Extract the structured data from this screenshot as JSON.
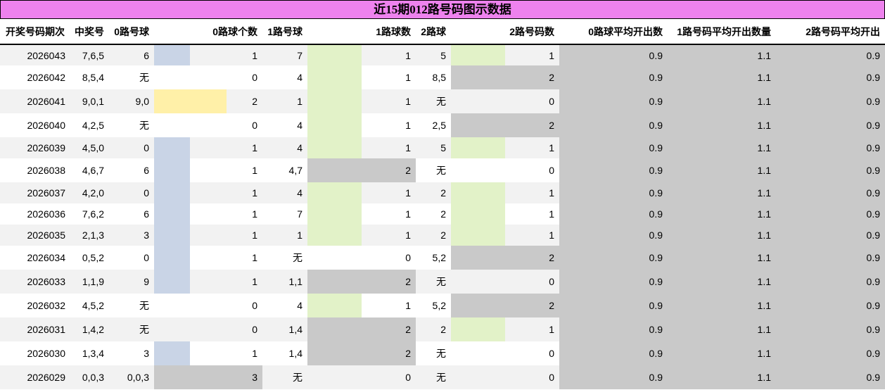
{
  "title": "近15期012路号码图示数据",
  "headers": [
    "开奖号码期次",
    "中奖号",
    "0路号球",
    "0路球个数",
    "1路号球",
    "1路球数",
    "2路球",
    "2路号码数",
    "0路球平均开出数",
    "1路号码平均开出数量",
    "2路号码平均开出"
  ],
  "colors": {
    "title_bg": "#ee82ee",
    "row_alt": "#f2f2f2",
    "avg_bg": "#c9c9c9",
    "road0_bar": {
      "1": "#c9d4e6",
      "2": "#fff0a8",
      "3": "#c9c9c9"
    },
    "road12_bar": {
      "1": "#e2f2c8",
      "2": "#c9c9c9"
    }
  },
  "rows": [
    [
      "2026043",
      "7,6,5",
      "6",
      "1",
      "7",
      "1",
      "5",
      "1",
      "0.9",
      "1.1",
      "0.9"
    ],
    [
      "2026042",
      "8,5,4",
      "无",
      "0",
      "4",
      "1",
      "8,5",
      "2",
      "0.9",
      "1.1",
      "0.9"
    ],
    [
      "2026041",
      "9,0,1",
      "9,0",
      "2",
      "1",
      "1",
      "无",
      "0",
      "0.9",
      "1.1",
      "0.9"
    ],
    [
      "2026040",
      "4,2,5",
      "无",
      "0",
      "4",
      "1",
      "2,5",
      "2",
      "0.9",
      "1.1",
      "0.9"
    ],
    [
      "2026039",
      "4,5,0",
      "0",
      "1",
      "4",
      "1",
      "5",
      "1",
      "0.9",
      "1.1",
      "0.9"
    ],
    [
      "2026038",
      "4,6,7",
      "6",
      "1",
      "4,7",
      "2",
      "无",
      "0",
      "0.9",
      "1.1",
      "0.9"
    ],
    [
      "2026037",
      "4,2,0",
      "0",
      "1",
      "4",
      "1",
      "2",
      "1",
      "0.9",
      "1.1",
      "0.9"
    ],
    [
      "2026036",
      "7,6,2",
      "6",
      "1",
      "7",
      "1",
      "2",
      "1",
      "0.9",
      "1.1",
      "0.9"
    ],
    [
      "2026035",
      "2,1,3",
      "3",
      "1",
      "1",
      "1",
      "2",
      "1",
      "0.9",
      "1.1",
      "0.9"
    ],
    [
      "2026034",
      "0,5,2",
      "0",
      "1",
      "无",
      "0",
      "5,2",
      "2",
      "0.9",
      "1.1",
      "0.9"
    ],
    [
      "2026033",
      "1,1,9",
      "9",
      "1",
      "1,1",
      "2",
      "无",
      "0",
      "0.9",
      "1.1",
      "0.9"
    ],
    [
      "2026032",
      "4,5,2",
      "无",
      "0",
      "4",
      "1",
      "5,2",
      "2",
      "0.9",
      "1.1",
      "0.9"
    ],
    [
      "2026031",
      "1,4,2",
      "无",
      "0",
      "1,4",
      "2",
      "2",
      "1",
      "0.9",
      "1.1",
      "0.9"
    ],
    [
      "2026030",
      "1,3,4",
      "3",
      "1",
      "1,4",
      "2",
      "无",
      "0",
      "0.9",
      "1.1",
      "0.9"
    ],
    [
      "2026029",
      "0,0,3",
      "0,0,3",
      "3",
      "无",
      "0",
      "无",
      "0",
      "0.9",
      "1.1",
      "0.9"
    ]
  ]
}
